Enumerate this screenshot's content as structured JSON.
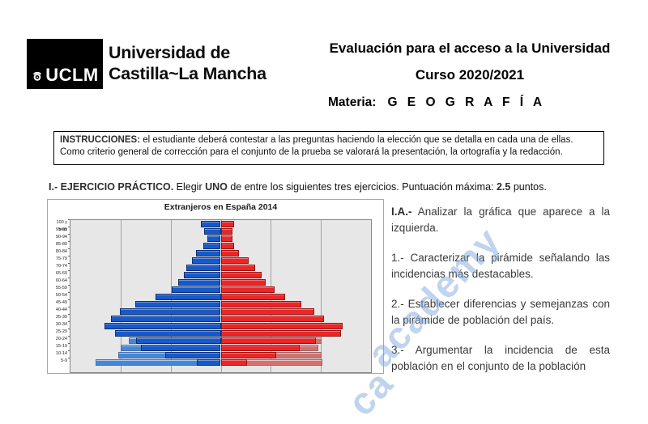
{
  "header": {
    "logo_acronym": "UCLM",
    "university_name_line1": "Universidad de",
    "university_name_line2": "Castilla~La Mancha",
    "title_line1": "Evaluación para el acceso a la Universidad",
    "title_line2": "Curso 2020/2021",
    "subject_label": "Materia:",
    "subject_value": "G E O G R A F Í A"
  },
  "instructions": {
    "lead": "INSTRUCCIONES:",
    "text": " el estudiante deberá contestar a las preguntas haciendo la elección que se detalla en cada una de ellas. Como criterio general de corrección para el conjunto de la prueba se valorará la presentación, la ortografía y la redacción."
  },
  "exercise_header": {
    "bold1": "I.- EJERCICIO PRÁCTICO.",
    "normal1": " Elegir ",
    "bold2": "UNO",
    "normal2": " de entre los siguientes tres ejercicios. Puntuación máxima: ",
    "bold3": "2.5",
    "normal3": " puntos."
  },
  "questions": {
    "qa_label": "I.A.-",
    "qa_text": " Analizar la gráfica que aparece a la izquierda.",
    "items": [
      "1.- Caracterizar la pirámide señalando las incidencias más destacables.",
      "2.- Establecer diferencias y semejanzas con la pirámide de población del país.",
      "3.- Argumentar la incidencia de esta población en el conjunto de la población"
    ]
  },
  "watermark": {
    "text": "academy",
    "fragment": "ca",
    "color": "#82a8e0"
  },
  "chart_data": {
    "type": "bar",
    "variant": "population-pyramid",
    "title": "Extranjeros en España 2014",
    "orientation": "horizontal, males left (blue) / females right (red)",
    "x_axis_tick_labels_visible": false,
    "note": "values are estimated relative half-widths (percent-style units read from gridlines); bottom 0-4 row cut off by screenshot edge",
    "axis": {
      "x_max_each_side": 3.0,
      "gridline_step": 1.0,
      "plot_bg": "#e7e7e7",
      "gridline_color": "#a2a2a2"
    },
    "age_groups": [
      "100 y más",
      "95-99",
      "90-94",
      "85-89",
      "80-84",
      "75-79",
      "70-74",
      "65-69",
      "60-64",
      "55-59",
      "50-54",
      "45-49",
      "40-44",
      "35-39",
      "30-34",
      "25-29",
      "20-24",
      "15-19",
      "10-14",
      "5-9"
    ],
    "series": [
      {
        "name": "hombres-fondo",
        "side": "left",
        "layer": "background",
        "color": "#4487d8",
        "values": [
          null,
          null,
          null,
          null,
          null,
          null,
          null,
          null,
          null,
          null,
          null,
          null,
          null,
          null,
          null,
          null,
          1.84,
          2.0,
          2.05,
          2.5
        ]
      },
      {
        "name": "mujeres-fondo",
        "side": "right",
        "layer": "background",
        "color": "#d5716d",
        "values": [
          null,
          null,
          null,
          null,
          null,
          null,
          null,
          null,
          null,
          null,
          null,
          null,
          null,
          null,
          null,
          null,
          2.02,
          1.95,
          2.02,
          2.03
        ]
      },
      {
        "name": "hombres",
        "side": "left",
        "layer": "foreground",
        "color": "#1659cd",
        "values": [
          0.39,
          0.34,
          0.26,
          0.35,
          0.5,
          0.58,
          0.69,
          0.73,
          0.85,
          0.98,
          1.31,
          1.71,
          2.02,
          2.19,
          2.32,
          2.11,
          1.69,
          1.6,
          1.11,
          0.48
        ]
      },
      {
        "name": "mujeres",
        "side": "right",
        "layer": "foreground",
        "color": "#ee2426",
        "values": [
          0.26,
          0.23,
          0.24,
          0.26,
          0.37,
          0.55,
          0.69,
          0.82,
          0.9,
          1.08,
          1.29,
          1.61,
          1.87,
          2.06,
          2.44,
          2.4,
          1.9,
          1.58,
          1.1,
          0.53
        ]
      }
    ],
    "legend": "none"
  }
}
